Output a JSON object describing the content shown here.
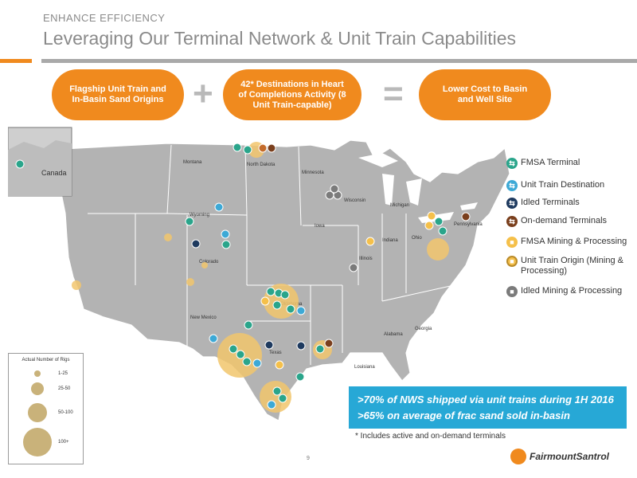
{
  "header": {
    "eyebrow": "ENHANCE EFFICIENCY",
    "title": "Leveraging Our Terminal Network & Unit Train Capabilities"
  },
  "equation": {
    "pill1": "Flagship Unit Train and In-Basin Sand Origins",
    "operator1": "+",
    "pill2": "42* Destinations in Heart of Completions Activity (8 Unit Train-capable)",
    "operator2": "=",
    "pill3": "Lower Cost to Basin and Well Site"
  },
  "colors": {
    "accent_orange": "#f08a1e",
    "terminal_teal": "#2aa58b",
    "unit_train_blue": "#3da9d6",
    "idled_navy": "#1e3a5f",
    "on_demand_brown": "#7a3f1d",
    "mining_gold": "#f5c04a",
    "bubble_gold": "#f2c66d",
    "callout_blue": "#27a8d6"
  },
  "map": {
    "states": [
      "Montana",
      "North Dakota",
      "Minnesota",
      "Wisconsin",
      "Michigan",
      "Wyoming",
      "Iowa",
      "Illinois",
      "Indiana",
      "Ohio",
      "Pennsylvania",
      "Colorado",
      "Oklahoma",
      "New Mexico",
      "Texas",
      "Alabama",
      "Georgia",
      "Louisiana"
    ],
    "country": "Canada"
  },
  "legend": {
    "items": [
      {
        "label": "FMSA Terminal",
        "icon": "terminal-icon"
      },
      {
        "label": "Unit Train Destination",
        "icon": "unit-train-destination-icon"
      },
      {
        "label": "Idled Terminals",
        "icon": "idled-terminal-icon"
      },
      {
        "label": "On-demand Terminals",
        "icon": "on-demand-terminal-icon"
      },
      {
        "label": "FMSA Mining & Processing",
        "icon": "mining-icon"
      },
      {
        "label": "Unit Train Origin (Mining & Processing)",
        "icon": "unit-train-origin-icon"
      },
      {
        "label": "Idled Mining & Processing",
        "icon": "idled-mining-icon"
      }
    ]
  },
  "rig_legend": {
    "title": "Actual Number of Rigs",
    "labels": [
      "1-25",
      "25-50",
      "50-100",
      "100+"
    ]
  },
  "callout": {
    "line1": ">70% of NWS shipped via unit trains during 1H 2016",
    "line2": ">65% on average of frac sand sold in-basin"
  },
  "footnote": "* Includes active and on-demand terminals",
  "page_number": "9",
  "brand": "FairmountSantrol"
}
